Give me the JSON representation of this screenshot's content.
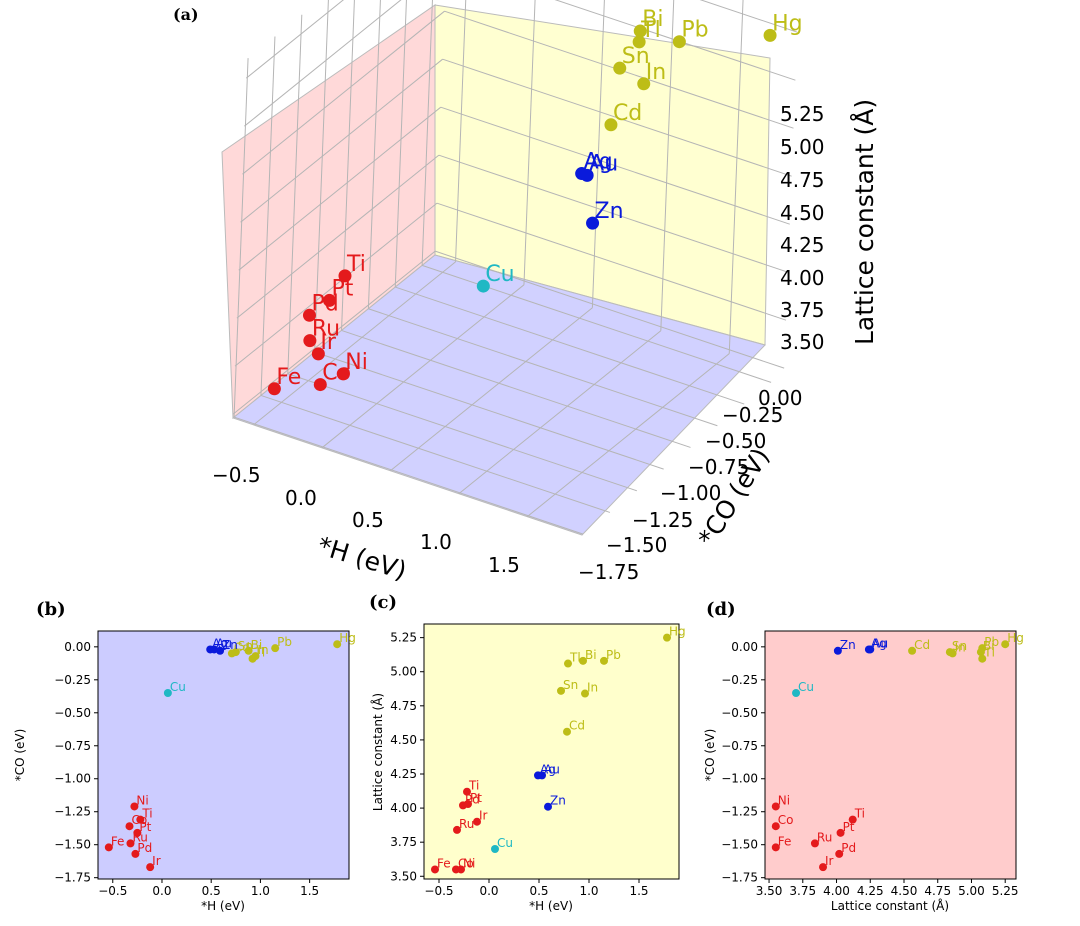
{
  "figure": {
    "panel_labels": [
      "(a)",
      "(b)",
      "(c)",
      "(d)"
    ]
  },
  "colors": {
    "red": "#e41a1c",
    "blue": "#0a1adb",
    "cyan": "#1fb8c4",
    "olive": "#bdbd17",
    "pane_red": "#ffcccc",
    "pane_yellow": "#ffffcc",
    "pane_blue": "#ccccff"
  },
  "chart_data": [
    {
      "id": "a",
      "type": "scatter3d",
      "title": "(a)",
      "xlabel": "*H (eV)",
      "ylabel": "*CO (eV)",
      "zlabel": "Lattice constant (Å)",
      "xticks": [
        "−0.5",
        "0.0",
        "0.5",
        "1.0",
        "1.5"
      ],
      "yticks": [
        "0.00",
        "−0.25",
        "−0.50",
        "−0.75",
        "−1.00",
        "−1.25",
        "−1.50",
        "−1.75"
      ],
      "zticks": [
        "5.25",
        "5.00",
        "4.75",
        "4.50",
        "4.25",
        "4.00",
        "3.75",
        "3.50"
      ],
      "points": [
        {
          "label": "Hg",
          "color": "olive"
        },
        {
          "label": "Tl",
          "color": "olive"
        },
        {
          "label": "Bi",
          "color": "olive"
        },
        {
          "label": "Pb",
          "color": "olive"
        },
        {
          "label": "Sn",
          "color": "olive"
        },
        {
          "label": "In",
          "color": "olive"
        },
        {
          "label": "Cd",
          "color": "olive"
        },
        {
          "label": "Ag",
          "color": "blue"
        },
        {
          "label": "Au",
          "color": "blue"
        },
        {
          "label": "Zn",
          "color": "blue"
        },
        {
          "label": "Cu",
          "color": "cyan"
        },
        {
          "label": "Ti",
          "color": "red"
        },
        {
          "label": "Pt",
          "color": "red"
        },
        {
          "label": "Ru",
          "color": "red"
        },
        {
          "label": "Ir",
          "color": "red"
        },
        {
          "label": "Pd",
          "color": "red"
        },
        {
          "label": "Ni",
          "color": "red"
        },
        {
          "label": "Co",
          "color": "red"
        },
        {
          "label": "Fe",
          "color": "red"
        }
      ]
    },
    {
      "id": "b",
      "type": "scatter",
      "title": "(b)",
      "xlabel": "*H (eV)",
      "ylabel": "*CO (eV)",
      "xlim": [
        -0.65,
        1.9
      ],
      "ylim": [
        -1.76,
        0.12
      ],
      "xticks": [
        -0.5,
        0.0,
        0.5,
        1.0,
        1.5
      ],
      "xtick_labels": [
        "−0.5",
        "0.0",
        "0.5",
        "1.0",
        "1.5"
      ],
      "yticks": [
        0.0,
        -0.25,
        -0.5,
        -0.75,
        -1.0,
        -1.25,
        -1.5,
        -1.75
      ],
      "ytick_labels": [
        "0.00",
        "−0.25",
        "−0.50",
        "−0.75",
        "−1.00",
        "−1.25",
        "−1.50",
        "−1.75"
      ],
      "points": [
        {
          "label": "Hg",
          "x": 1.78,
          "y": 0.02,
          "color": "olive"
        },
        {
          "label": "Pb",
          "x": 1.15,
          "y": -0.01,
          "color": "olive"
        },
        {
          "label": "Bi",
          "x": 0.88,
          "y": -0.03,
          "color": "olive"
        },
        {
          "label": "In",
          "x": 0.95,
          "y": -0.07,
          "color": "olive"
        },
        {
          "label": "Tl",
          "x": 0.92,
          "y": -0.09,
          "color": "olive"
        },
        {
          "label": "Sn",
          "x": 0.75,
          "y": -0.04,
          "color": "olive"
        },
        {
          "label": "Cd",
          "x": 0.71,
          "y": -0.05,
          "color": "olive"
        },
        {
          "label": "Ag",
          "x": 0.49,
          "y": -0.02,
          "color": "blue"
        },
        {
          "label": "Au",
          "x": 0.53,
          "y": -0.02,
          "color": "blue"
        },
        {
          "label": "Zn",
          "x": 0.59,
          "y": -0.03,
          "color": "blue"
        },
        {
          "label": "Cu",
          "x": 0.06,
          "y": -0.35,
          "color": "cyan"
        },
        {
          "label": "Ni",
          "x": -0.28,
          "y": -1.21,
          "color": "red"
        },
        {
          "label": "Ti",
          "x": -0.22,
          "y": -1.31,
          "color": "red"
        },
        {
          "label": "Co",
          "x": -0.33,
          "y": -1.36,
          "color": "red"
        },
        {
          "label": "Pt",
          "x": -0.25,
          "y": -1.41,
          "color": "red"
        },
        {
          "label": "Ru",
          "x": -0.32,
          "y": -1.49,
          "color": "red"
        },
        {
          "label": "Fe",
          "x": -0.54,
          "y": -1.52,
          "color": "red"
        },
        {
          "label": "Pd",
          "x": -0.27,
          "y": -1.57,
          "color": "red"
        },
        {
          "label": "Ir",
          "x": -0.12,
          "y": -1.67,
          "color": "red"
        }
      ]
    },
    {
      "id": "c",
      "type": "scatter",
      "title": "(c)",
      "xlabel": "*H (eV)",
      "ylabel": "Lattice constant (Å)",
      "xlim": [
        -0.65,
        1.9
      ],
      "ylim": [
        3.48,
        5.35
      ],
      "xticks": [
        -0.5,
        0.0,
        0.5,
        1.0,
        1.5
      ],
      "xtick_labels": [
        "−0.5",
        "0.0",
        "0.5",
        "1.0",
        "1.5"
      ],
      "yticks": [
        3.5,
        3.75,
        4.0,
        4.25,
        4.5,
        4.75,
        5.0,
        5.25
      ],
      "ytick_labels": [
        "3.50",
        "3.75",
        "4.00",
        "4.25",
        "4.50",
        "4.75",
        "5.00",
        "5.25"
      ],
      "points": [
        {
          "label": "Hg",
          "x": 1.78,
          "y": 5.25,
          "color": "olive"
        },
        {
          "label": "Tl",
          "x": 0.79,
          "y": 5.06,
          "color": "olive"
        },
        {
          "label": "Bi",
          "x": 0.94,
          "y": 5.08,
          "color": "olive"
        },
        {
          "label": "Pb",
          "x": 1.15,
          "y": 5.08,
          "color": "olive"
        },
        {
          "label": "Sn",
          "x": 0.72,
          "y": 4.86,
          "color": "olive"
        },
        {
          "label": "In",
          "x": 0.96,
          "y": 4.84,
          "color": "olive"
        },
        {
          "label": "Cd",
          "x": 0.78,
          "y": 4.56,
          "color": "olive"
        },
        {
          "label": "Ag",
          "x": 0.49,
          "y": 4.24,
          "color": "blue"
        },
        {
          "label": "Au",
          "x": 0.53,
          "y": 4.24,
          "color": "blue"
        },
        {
          "label": "Zn",
          "x": 0.59,
          "y": 4.01,
          "color": "blue"
        },
        {
          "label": "Cu",
          "x": 0.06,
          "y": 3.7,
          "color": "cyan"
        },
        {
          "label": "Ti",
          "x": -0.22,
          "y": 4.12,
          "color": "red"
        },
        {
          "label": "Pt",
          "x": -0.21,
          "y": 4.03,
          "color": "red"
        },
        {
          "label": "Pd",
          "x": -0.26,
          "y": 4.02,
          "color": "red"
        },
        {
          "label": "Ir",
          "x": -0.12,
          "y": 3.9,
          "color": "red"
        },
        {
          "label": "Ru",
          "x": -0.32,
          "y": 3.84,
          "color": "red"
        },
        {
          "label": "Fe",
          "x": -0.54,
          "y": 3.55,
          "color": "red"
        },
        {
          "label": "Co",
          "x": -0.33,
          "y": 3.55,
          "color": "red"
        },
        {
          "label": "Ni",
          "x": -0.28,
          "y": 3.55,
          "color": "red"
        }
      ]
    },
    {
      "id": "d",
      "type": "scatter",
      "title": "(d)",
      "xlabel": "Lattice constant (Å)",
      "ylabel": "*CO (eV)",
      "xlim": [
        3.47,
        5.33
      ],
      "ylim": [
        -1.76,
        0.12
      ],
      "xticks": [
        3.5,
        3.75,
        4.0,
        4.25,
        4.5,
        4.75,
        5.0,
        5.25
      ],
      "xtick_labels": [
        "3.50",
        "3.75",
        "4.00",
        "4.25",
        "4.50",
        "4.75",
        "5.00",
        "5.25"
      ],
      "yticks": [
        0.0,
        -0.25,
        -0.5,
        -0.75,
        -1.0,
        -1.25,
        -1.5,
        -1.75
      ],
      "ytick_labels": [
        "0.00",
        "−0.25",
        "−0.50",
        "−0.75",
        "−1.00",
        "−1.25",
        "−1.50",
        "−1.75"
      ],
      "points": [
        {
          "label": "Zn",
          "x": 4.01,
          "y": -0.03,
          "color": "blue"
        },
        {
          "label": "Ag",
          "x": 4.24,
          "y": -0.02,
          "color": "blue"
        },
        {
          "label": "Au",
          "x": 4.25,
          "y": -0.02,
          "color": "blue"
        },
        {
          "label": "Cd",
          "x": 4.56,
          "y": -0.03,
          "color": "olive"
        },
        {
          "label": "Sn",
          "x": 4.84,
          "y": -0.04,
          "color": "olive"
        },
        {
          "label": "In",
          "x": 4.86,
          "y": -0.05,
          "color": "olive"
        },
        {
          "label": "Pb",
          "x": 5.08,
          "y": -0.01,
          "color": "olive"
        },
        {
          "label": "Bi",
          "x": 5.07,
          "y": -0.04,
          "color": "olive"
        },
        {
          "label": "Tl",
          "x": 5.08,
          "y": -0.09,
          "color": "olive"
        },
        {
          "label": "Hg",
          "x": 5.25,
          "y": 0.02,
          "color": "olive"
        },
        {
          "label": "Cu",
          "x": 3.7,
          "y": -0.35,
          "color": "cyan"
        },
        {
          "label": "Ni",
          "x": 3.55,
          "y": -1.21,
          "color": "red"
        },
        {
          "label": "Co",
          "x": 3.55,
          "y": -1.36,
          "color": "red"
        },
        {
          "label": "Fe",
          "x": 3.55,
          "y": -1.52,
          "color": "red"
        },
        {
          "label": "Ti",
          "x": 4.12,
          "y": -1.31,
          "color": "red"
        },
        {
          "label": "Pt",
          "x": 4.03,
          "y": -1.41,
          "color": "red"
        },
        {
          "label": "Ru",
          "x": 3.84,
          "y": -1.49,
          "color": "red"
        },
        {
          "label": "Pd",
          "x": 4.02,
          "y": -1.57,
          "color": "red"
        },
        {
          "label": "Ir",
          "x": 3.9,
          "y": -1.67,
          "color": "red"
        }
      ]
    }
  ]
}
